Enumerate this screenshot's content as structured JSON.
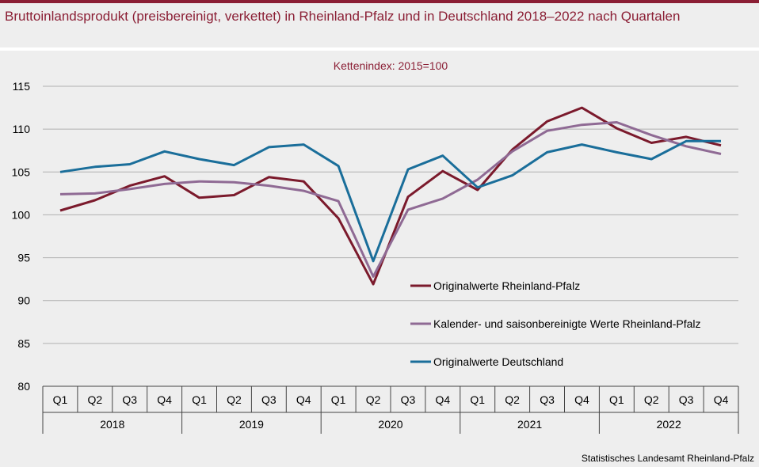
{
  "title": "Bruttoinlandsprodukt (preisbereinigt, verkettet) in Rheinland-Pfalz und in Deutschland 2018–2022 nach Quartalen",
  "source": "Statistisches Landesamt Rheinland-Pfalz",
  "colors": {
    "brand": "#8b1f35",
    "grid": "#b0b0b0",
    "axis": "#444444"
  },
  "chart_data": {
    "type": "line",
    "subtitle": "Kettenindex:  2015=100",
    "ylim": [
      80,
      115
    ],
    "yticks": [
      80,
      85,
      90,
      95,
      100,
      105,
      110,
      115
    ],
    "grid": true,
    "legend_position": "center-right",
    "quarters": [
      "Q1",
      "Q2",
      "Q3",
      "Q4",
      "Q1",
      "Q2",
      "Q3",
      "Q4",
      "Q1",
      "Q2",
      "Q3",
      "Q4",
      "Q1",
      "Q2",
      "Q3",
      "Q4",
      "Q1",
      "Q2",
      "Q3",
      "Q4"
    ],
    "years": [
      "2018",
      "2019",
      "2020",
      "2021",
      "2022"
    ],
    "series": [
      {
        "name": "Originalwerte Rheinland-Pfalz",
        "color": "#7b1a2c",
        "values": [
          100.5,
          101.7,
          103.4,
          104.5,
          102.0,
          102.3,
          104.4,
          103.9,
          99.6,
          91.9,
          102.1,
          105.1,
          102.9,
          107.6,
          110.9,
          112.5,
          110.1,
          108.4,
          109.1,
          108.1
        ]
      },
      {
        "name": "Kalender- und saisonbereinigte Werte Rheinland-Pfalz",
        "color": "#8f6a94",
        "values": [
          102.4,
          102.5,
          103.0,
          103.6,
          103.9,
          103.8,
          103.4,
          102.8,
          101.6,
          92.8,
          100.6,
          101.9,
          104.1,
          107.4,
          109.8,
          110.5,
          110.8,
          109.3,
          108.0,
          107.1
        ]
      },
      {
        "name": "Originalwerte Deutschland",
        "color": "#1a6e9a",
        "values": [
          105.0,
          105.6,
          105.9,
          107.4,
          106.5,
          105.8,
          107.9,
          108.2,
          105.7,
          94.6,
          105.3,
          106.9,
          103.2,
          104.6,
          107.3,
          108.2,
          107.3,
          106.5,
          108.6,
          108.6
        ]
      }
    ]
  }
}
